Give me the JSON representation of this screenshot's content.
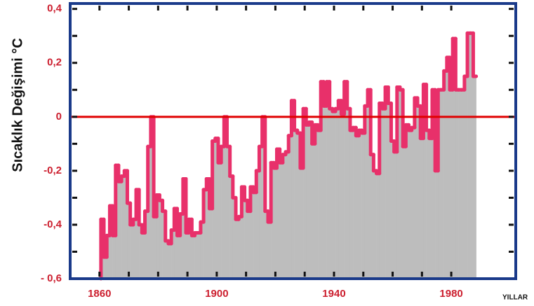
{
  "chart_data": {
    "type": "step-area",
    "y_label": "Sıcaklık Değişimi °C",
    "x_label": "YILLAR",
    "x": [
      1861,
      1862,
      1863,
      1864,
      1865,
      1866,
      1867,
      1868,
      1869,
      1870,
      1871,
      1872,
      1873,
      1874,
      1875,
      1876,
      1877,
      1878,
      1879,
      1880,
      1881,
      1882,
      1883,
      1884,
      1885,
      1886,
      1887,
      1888,
      1889,
      1890,
      1891,
      1892,
      1893,
      1894,
      1895,
      1896,
      1897,
      1898,
      1899,
      1900,
      1901,
      1902,
      1903,
      1904,
      1905,
      1906,
      1907,
      1908,
      1909,
      1910,
      1911,
      1912,
      1913,
      1914,
      1915,
      1916,
      1917,
      1918,
      1919,
      1920,
      1921,
      1922,
      1923,
      1924,
      1925,
      1926,
      1927,
      1928,
      1929,
      1930,
      1931,
      1932,
      1933,
      1934,
      1935,
      1936,
      1937,
      1938,
      1939,
      1940,
      1941,
      1942,
      1943,
      1944,
      1945,
      1946,
      1947,
      1948,
      1949,
      1950,
      1951,
      1952,
      1953,
      1954,
      1955,
      1956,
      1957,
      1958,
      1959,
      1960,
      1961,
      1962,
      1963,
      1964,
      1965,
      1966,
      1967,
      1968,
      1969,
      1970,
      1971,
      1972,
      1973,
      1974,
      1975,
      1976,
      1977,
      1978,
      1979,
      1980,
      1981,
      1982,
      1983,
      1984,
      1985,
      1986,
      1987,
      1988
    ],
    "values": [
      -0.38,
      -0.52,
      -0.44,
      -0.33,
      -0.44,
      -0.18,
      -0.24,
      -0.22,
      -0.2,
      -0.32,
      -0.4,
      -0.38,
      -0.27,
      -0.4,
      -0.43,
      -0.35,
      -0.11,
      0.0,
      -0.37,
      -0.29,
      -0.31,
      -0.35,
      -0.46,
      -0.47,
      -0.42,
      -0.34,
      -0.44,
      -0.36,
      -0.23,
      -0.43,
      -0.38,
      -0.44,
      -0.43,
      -0.43,
      -0.39,
      -0.27,
      -0.23,
      -0.34,
      -0.09,
      -0.08,
      -0.17,
      -0.11,
      0.0,
      -0.11,
      -0.22,
      -0.3,
      -0.38,
      -0.37,
      -0.26,
      -0.31,
      -0.35,
      -0.26,
      -0.28,
      -0.2,
      -0.11,
      0.0,
      -0.35,
      -0.39,
      -0.17,
      -0.19,
      -0.12,
      -0.17,
      -0.14,
      -0.13,
      -0.07,
      0.06,
      -0.05,
      -0.06,
      -0.19,
      0.03,
      -0.03,
      -0.02,
      -0.1,
      -0.03,
      -0.05,
      0.13,
      0.04,
      0.13,
      0.03,
      0.02,
      0.03,
      0.06,
      0.01,
      0.13,
      0.03,
      -0.05,
      -0.04,
      -0.07,
      -0.05,
      -0.06,
      0.04,
      0.1,
      -0.14,
      -0.2,
      -0.21,
      0.05,
      0.03,
      0.11,
      0.05,
      -0.09,
      -0.13,
      0.11,
      0.1,
      -0.11,
      -0.03,
      -0.05,
      -0.04,
      0.07,
      0.04,
      -0.08,
      0.12,
      -0.05,
      -0.08,
      0.1,
      -0.2,
      0.1,
      0.1,
      0.17,
      0.22,
      0.1,
      0.29,
      0.1,
      0.1,
      0.1,
      0.15,
      0.31,
      0.31,
      0.15
    ],
    "line_color": "#e8306a",
    "fill_color": "#bdbdbd",
    "zero_line_color": "#e00000",
    "frame_color": "#1a3a8a",
    "xlim": [
      1850,
      2002
    ],
    "ylim": [
      -0.6,
      0.42
    ],
    "xticks": [
      1860,
      1900,
      1940,
      1980
    ],
    "yticks": [
      {
        "value": -0.6,
        "label": "- 0,6"
      },
      {
        "value": -0.4,
        "label": "-0,4"
      },
      {
        "value": -0.2,
        "label": "-0,2"
      },
      0,
      {
        "value": 0.2,
        "label": "0,2"
      },
      {
        "value": 0.4,
        "label": "0,4"
      }
    ]
  }
}
